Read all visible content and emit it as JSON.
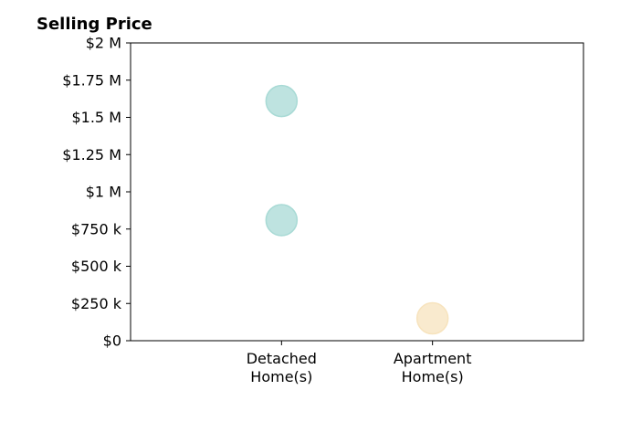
{
  "chart_data": {
    "type": "scatter",
    "title": "Selling Price",
    "xlabel": "",
    "ylabel": "",
    "categories": [
      "Detached\nHome(s)",
      "Apartment\nHome(s)"
    ],
    "y_ticks": [
      {
        "value": 0,
        "label": "$0"
      },
      {
        "value": 250000,
        "label": "$250 k"
      },
      {
        "value": 500000,
        "label": "$500 k"
      },
      {
        "value": 750000,
        "label": "$750 k"
      },
      {
        "value": 1000000,
        "label": "$1 M"
      },
      {
        "value": 1250000,
        "label": "$1.25 M"
      },
      {
        "value": 1500000,
        "label": "$1.5 M"
      },
      {
        "value": 1750000,
        "label": "$1.75 M"
      },
      {
        "value": 2000000,
        "label": "$2 M"
      }
    ],
    "ylim": [
      0,
      2000000
    ],
    "grid": false,
    "points": [
      {
        "category": "Detached\nHome(s)",
        "value": 1610000,
        "color": "#a8dad5"
      },
      {
        "category": "Detached\nHome(s)",
        "value": 810000,
        "color": "#a8dad5"
      },
      {
        "category": "Apartment\nHome(s)",
        "value": 150000,
        "color": "#f7e3bd"
      }
    ]
  }
}
